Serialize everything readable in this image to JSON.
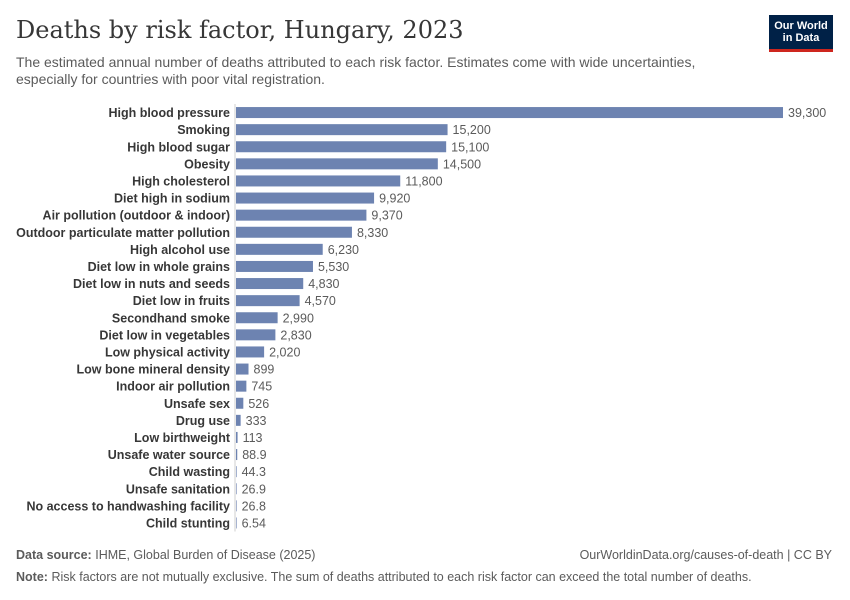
{
  "header": {
    "title": "Deaths by risk factor, Hungary, 2023",
    "subtitle": "The estimated annual number of deaths attributed to each risk factor. Estimates come with wide uncertainties, especially for countries with poor vital registration."
  },
  "logo": {
    "line1": "Our World",
    "line2": "in Data"
  },
  "footer": {
    "source_label": "Data source:",
    "source_text": "IHME, Global Burden of Disease (2025)",
    "url": "OurWorldinData.org/causes-of-death | CC BY",
    "note_label": "Note:",
    "note_text": "Risk factors are not mutually exclusive. The sum of deaths attributed to each risk factor can exceed the total number of deaths."
  },
  "colors": {
    "bar": "#6d83b1",
    "axis": "#cfcfcf",
    "label": "#373737",
    "value": "#5b5b5b"
  },
  "chart_data": {
    "type": "bar",
    "orientation": "horizontal",
    "title": "Deaths by risk factor, Hungary, 2023",
    "xlim": [
      0,
      39300
    ],
    "categories": [
      "High blood pressure",
      "Smoking",
      "High blood sugar",
      "Obesity",
      "High cholesterol",
      "Diet high in sodium",
      "Air pollution (outdoor & indoor)",
      "Outdoor particulate matter pollution",
      "High alcohol use",
      "Diet low in whole grains",
      "Diet low in nuts and seeds",
      "Diet low in fruits",
      "Secondhand smoke",
      "Diet low in vegetables",
      "Low physical activity",
      "Low bone mineral density",
      "Indoor air pollution",
      "Unsafe sex",
      "Drug use",
      "Low birthweight",
      "Unsafe water source",
      "Child wasting",
      "Unsafe sanitation",
      "No access to handwashing facility",
      "Child stunting"
    ],
    "values": [
      39300,
      15200,
      15100,
      14500,
      11800,
      9920,
      9370,
      8330,
      6230,
      5530,
      4830,
      4570,
      2990,
      2830,
      2020,
      899,
      745,
      526,
      333,
      113,
      88.9,
      44.3,
      26.9,
      26.8,
      6.54
    ],
    "value_labels": [
      "39,300",
      "15,200",
      "15,100",
      "14,500",
      "11,800",
      "9,920",
      "9,370",
      "8,330",
      "6,230",
      "5,530",
      "4,830",
      "4,570",
      "2,990",
      "2,830",
      "2,020",
      "899",
      "745",
      "526",
      "333",
      "113",
      "88.9",
      "44.3",
      "26.9",
      "26.8",
      "6.54"
    ]
  }
}
